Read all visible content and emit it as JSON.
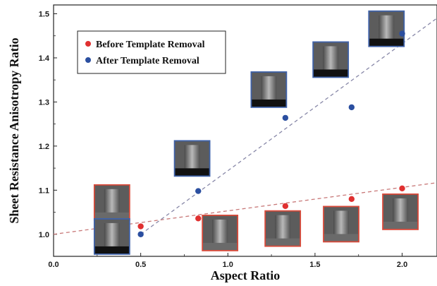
{
  "chart_data": {
    "type": "scatter",
    "title": "",
    "xlabel": "Aspect Ratio",
    "ylabel": "Sheet Resistance Anisotropy Ratio",
    "xlim": [
      0.0,
      2.2
    ],
    "ylim": [
      0.95,
      1.52
    ],
    "x_ticks": [
      "0.0",
      "0.5",
      "1.0",
      "1.5",
      "2.0"
    ],
    "y_ticks": [
      "1.0",
      "1.1",
      "1.2",
      "1.3",
      "1.4",
      "1.5"
    ],
    "grid": false,
    "legend_position": "top-left",
    "series": [
      {
        "name": "Before Template Removal",
        "color": "#e03030",
        "points": [
          {
            "x": 0.5,
            "y": 1.018
          },
          {
            "x": 0.83,
            "y": 1.036
          },
          {
            "x": 1.33,
            "y": 1.064
          },
          {
            "x": 1.71,
            "y": 1.08
          },
          {
            "x": 2.0,
            "y": 1.104
          }
        ],
        "trendline": {
          "style": "dashed",
          "color": "#c87878",
          "from": [
            0.0,
            1.0
          ],
          "to": [
            2.2,
            1.117
          ]
        }
      },
      {
        "name": "After Template Removal",
        "color": "#2b4fa0",
        "points": [
          {
            "x": 0.5,
            "y": 1.0
          },
          {
            "x": 0.83,
            "y": 1.098
          },
          {
            "x": 1.33,
            "y": 1.264
          },
          {
            "x": 1.71,
            "y": 1.288
          },
          {
            "x": 2.0,
            "y": 1.455
          }
        ],
        "trendline": {
          "style": "dashed",
          "color": "#8888a8",
          "from": [
            0.5,
            1.0
          ],
          "to": [
            2.2,
            1.49
          ]
        }
      }
    ],
    "annotations": [
      {
        "kind": "sem-inset",
        "border": "#d94a3a",
        "x": 0.335,
        "y": 1.072
      },
      {
        "kind": "sem-inset",
        "border": "#3f62a8",
        "x": 0.335,
        "y": 0.995
      },
      {
        "kind": "sem-inset",
        "border": "#3f62a8",
        "x": 0.795,
        "y": 1.172
      },
      {
        "kind": "sem-inset",
        "border": "#d94a3a",
        "x": 0.955,
        "y": 1.003
      },
      {
        "kind": "sem-inset",
        "border": "#3f62a8",
        "x": 1.235,
        "y": 1.328
      },
      {
        "kind": "sem-inset",
        "border": "#d94a3a",
        "x": 1.315,
        "y": 1.013
      },
      {
        "kind": "sem-inset",
        "border": "#3f62a8",
        "x": 1.59,
        "y": 1.396
      },
      {
        "kind": "sem-inset",
        "border": "#d94a3a",
        "x": 1.65,
        "y": 1.023
      },
      {
        "kind": "sem-inset",
        "border": "#3f62a8",
        "x": 1.91,
        "y": 1.466
      },
      {
        "kind": "sem-inset",
        "border": "#d94a3a",
        "x": 1.99,
        "y": 1.051
      }
    ]
  }
}
